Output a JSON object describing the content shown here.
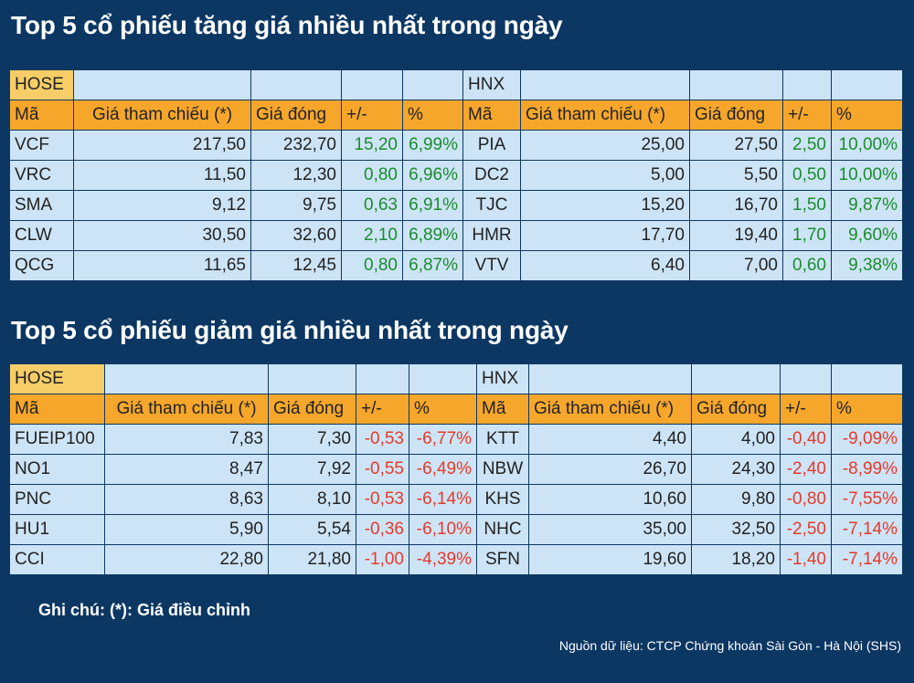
{
  "title_up": "Top 5 cổ phiếu tăng giá nhiều nhất trong ngày",
  "title_down": "Top 5 cổ phiếu giảm giá nhiều nhất trong ngày",
  "headers": {
    "hose": "HOSE",
    "hnx": "HNX",
    "code": "Mã",
    "ref_price": "Giá tham chiếu (*)",
    "close_price": "Giá đóng",
    "change": "+/-",
    "pct": "%"
  },
  "gainers": {
    "hose": [
      {
        "code": "VCF",
        "ref": "217,50",
        "close": "232,70",
        "chg": "15,20",
        "pct": "6,99%"
      },
      {
        "code": "VRC",
        "ref": "11,50",
        "close": "12,30",
        "chg": "0,80",
        "pct": "6,96%"
      },
      {
        "code": "SMA",
        "ref": "9,12",
        "close": "9,75",
        "chg": "0,63",
        "pct": "6,91%"
      },
      {
        "code": "CLW",
        "ref": "30,50",
        "close": "32,60",
        "chg": "2,10",
        "pct": "6,89%"
      },
      {
        "code": "QCG",
        "ref": "11,65",
        "close": "12,45",
        "chg": "0,80",
        "pct": "6,87%"
      }
    ],
    "hnx": [
      {
        "code": "PIA",
        "ref": "25,00",
        "close": "27,50",
        "chg": "2,50",
        "pct": "10,00%"
      },
      {
        "code": "DC2",
        "ref": "5,00",
        "close": "5,50",
        "chg": "0,50",
        "pct": "10,00%"
      },
      {
        "code": "TJC",
        "ref": "15,20",
        "close": "16,70",
        "chg": "1,50",
        "pct": "9,87%"
      },
      {
        "code": "HMR",
        "ref": "17,70",
        "close": "19,40",
        "chg": "1,70",
        "pct": "9,60%"
      },
      {
        "code": "VTV",
        "ref": "6,40",
        "close": "7,00",
        "chg": "0,60",
        "pct": "9,38%"
      }
    ]
  },
  "losers": {
    "hose": [
      {
        "code": "FUEIP100",
        "ref": "7,83",
        "close": "7,30",
        "chg": "-0,53",
        "pct": "-6,77%"
      },
      {
        "code": "NO1",
        "ref": "8,47",
        "close": "7,92",
        "chg": "-0,55",
        "pct": "-6,49%"
      },
      {
        "code": "PNC",
        "ref": "8,63",
        "close": "8,10",
        "chg": "-0,53",
        "pct": "-6,14%"
      },
      {
        "code": "HU1",
        "ref": "5,90",
        "close": "5,54",
        "chg": "-0,36",
        "pct": "-6,10%"
      },
      {
        "code": "CCI",
        "ref": "22,80",
        "close": "21,80",
        "chg": "-1,00",
        "pct": "-4,39%"
      }
    ],
    "hnx": [
      {
        "code": "KTT",
        "ref": "4,40",
        "close": "4,00",
        "chg": "-0,40",
        "pct": "-9,09%"
      },
      {
        "code": "NBW",
        "ref": "26,70",
        "close": "24,30",
        "chg": "-2,40",
        "pct": "-8,99%"
      },
      {
        "code": "KHS",
        "ref": "10,60",
        "close": "9,80",
        "chg": "-0,80",
        "pct": "-7,55%"
      },
      {
        "code": "NHC",
        "ref": "35,00",
        "close": "32,50",
        "chg": "-2,50",
        "pct": "-7,14%"
      },
      {
        "code": "SFN",
        "ref": "19,60",
        "close": "18,20",
        "chg": "-1,40",
        "pct": "-7,14%"
      }
    ]
  },
  "note": "Ghi chú: (*): Giá điều chỉnh",
  "source": "Nguồn dữ liệu: CTCP Chứng khoán Sài Gòn - Hà Nội (SHS)",
  "colors": {
    "background": "#0c3763",
    "cell": "#cde4f6",
    "exchange_label": "#f7cd67",
    "header": "#f6a72b",
    "positive": "#1b8b2d",
    "negative": "#e53a2a"
  }
}
